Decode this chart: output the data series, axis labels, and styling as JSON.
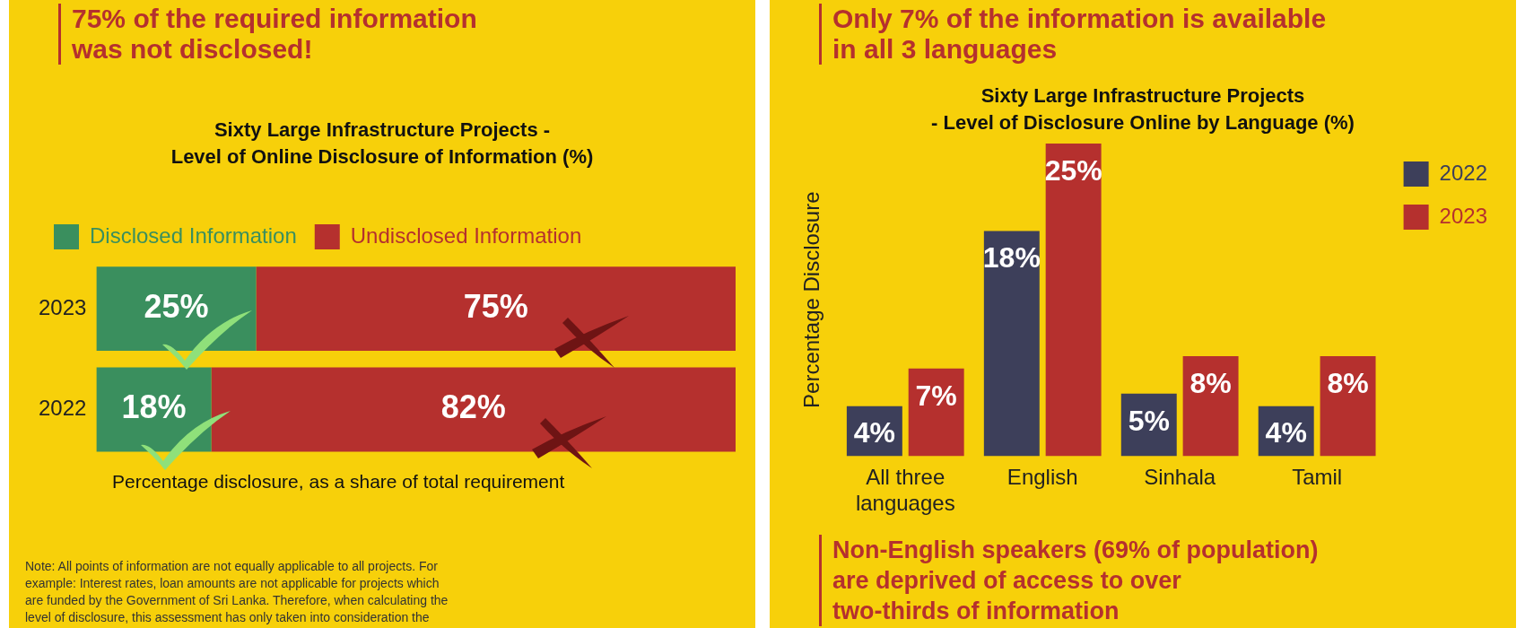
{
  "chart_data": [
    {
      "type": "bar",
      "orientation": "horizontal",
      "stacked": true,
      "title": "Sixty Large Infrastructure Projects -\nLevel of Online Disclosure of Information (%)",
      "categories": [
        "2023",
        "2022"
      ],
      "tick_labels": "y",
      "legend": "top left",
      "grid": false,
      "series": [
        {
          "name": "Disclosed Information",
          "color": "#3a8f5e",
          "values": [
            25,
            18
          ],
          "value_labels": [
            "25%",
            "18%"
          ]
        },
        {
          "name": "Undisclosed Information",
          "color": "#b5302e",
          "values": [
            75,
            82
          ],
          "value_labels": [
            "75%",
            "82%"
          ]
        }
      ],
      "annotations": [
        "75% of the required information\nwas not disclosed!",
        "Percentage disclosure, as a share of total requirement",
        "Note: All points of information are not equally applicable to all projects. For\nexample: Interest rates, loan amounts are not applicable for projects which\nare funded by the Government of Sri Lanka. Therefore, when calculating the\nlevel of disclosure, this assessment has only taken into consideration the"
      ]
    },
    {
      "type": "bar",
      "title": "Sixty Large Infrastructure Projects\n- Level of Disclosure Online by Language (%)",
      "ylabel": "Percentage Disclosure",
      "categories": [
        "All three languages",
        "English",
        "Sinhala",
        "Tamil"
      ],
      "tick_labels": "x",
      "legend": "top right",
      "grid": false,
      "series": [
        {
          "name": "2022",
          "color": "#3d3f5a",
          "values": [
            4,
            18,
            5,
            4
          ],
          "value_labels": [
            "4%",
            "18%",
            "5%",
            "4%"
          ]
        },
        {
          "name": "2023",
          "color": "#b5302e",
          "values": [
            7,
            25,
            8,
            8
          ],
          "value_labels": [
            "7%",
            "25%",
            "8%",
            "8%"
          ]
        }
      ],
      "annotations": [
        "Only 7% of the information is available\nin all 3 languages",
        "Non-English speakers (69% of population)\nare deprived of access to over\ntwo-thirds of information"
      ]
    }
  ]
}
